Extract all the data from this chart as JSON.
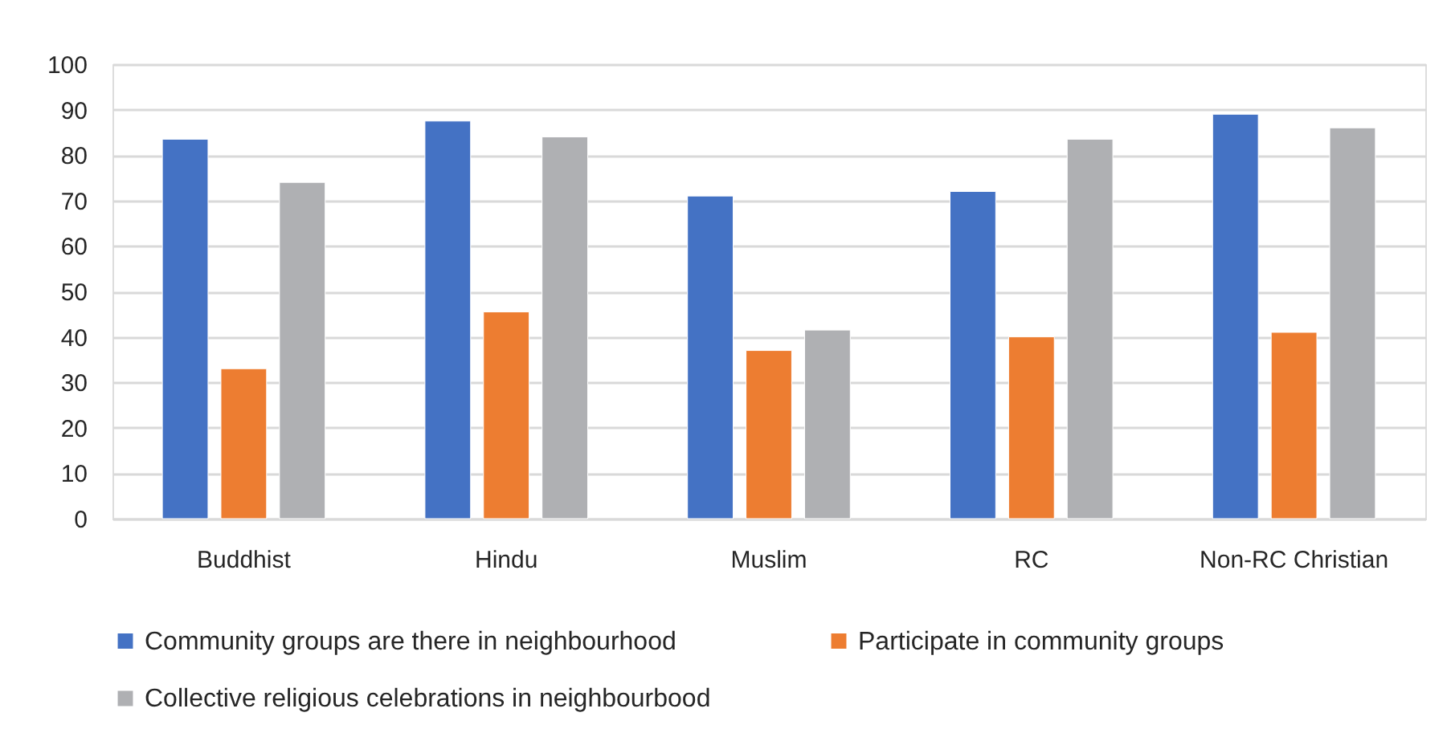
{
  "chart_data": {
    "type": "bar",
    "categories": [
      "Buddhist",
      "Hindu",
      "Muslim",
      "RC",
      "Non-RC Christian"
    ],
    "series": [
      {
        "name": "Community groups are there in neighbourhood",
        "color": "#4472c4",
        "values": [
          83.5,
          87.5,
          71,
          72,
          89
        ]
      },
      {
        "name": "Participate in community groups",
        "color": "#ed7d31",
        "values": [
          33,
          45.5,
          37,
          40,
          41
        ]
      },
      {
        "name": "Collective religious celebrations in neighbourbood",
        "color": "#afb0b3",
        "values": [
          74,
          84,
          41.5,
          83.5,
          86
        ]
      }
    ],
    "ylim": [
      0,
      100
    ],
    "yticks": [
      0,
      10,
      20,
      30,
      40,
      50,
      60,
      70,
      80,
      90,
      100
    ],
    "grid": "y",
    "legend": "bottom"
  }
}
